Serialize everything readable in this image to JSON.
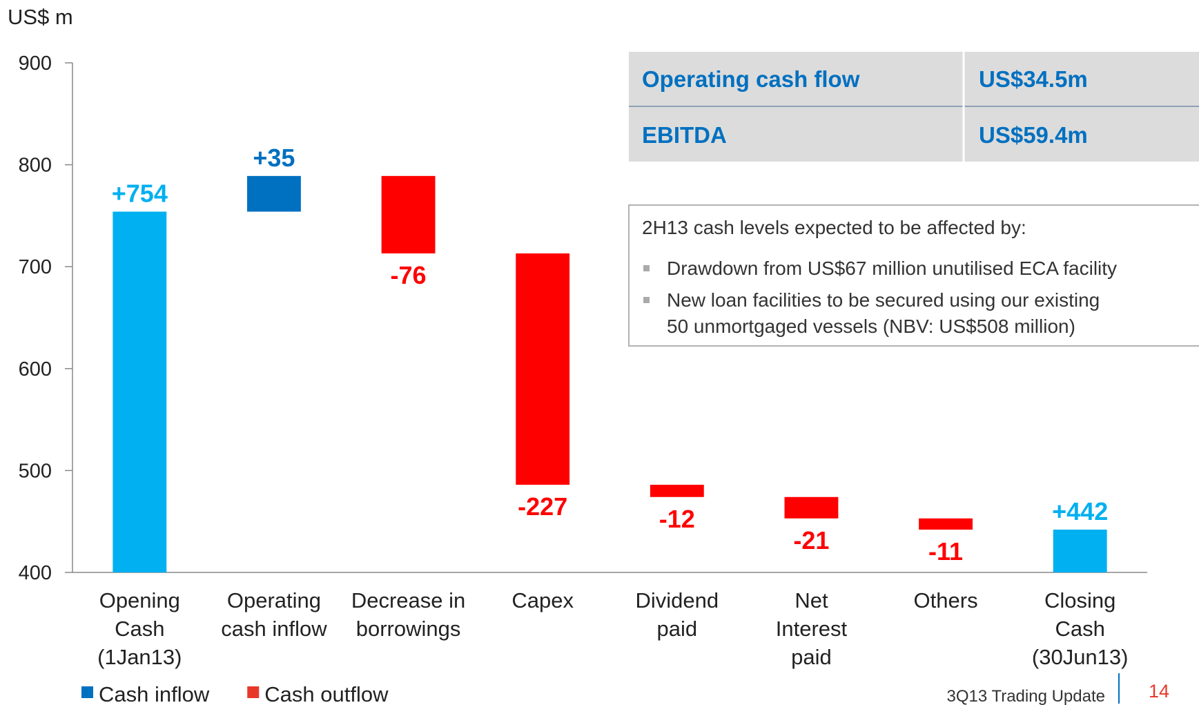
{
  "chart_data": {
    "type": "waterfall",
    "y_unit": "US$ m",
    "categories": [
      "Opening\nCash\n(1Jan13)",
      "Operating\ncash inflow",
      "Decrease in\nborrowings",
      "Capex",
      "Dividend\npaid",
      "Net\nInterest\npaid",
      "Others",
      "Closing\nCash\n(30Jun13)"
    ],
    "values": [
      754,
      35,
      -76,
      -227,
      -12,
      -21,
      -11,
      442
    ],
    "value_labels": [
      "+754",
      "+35",
      "-76",
      "-227",
      "-12",
      "-21",
      "-11",
      "+442"
    ],
    "measure": [
      "total",
      "relative",
      "relative",
      "relative",
      "relative",
      "relative",
      "relative",
      "total"
    ],
    "colors": [
      "#00b0f0",
      "#0070c0",
      "#ff0000",
      "#ff0000",
      "#ff0000",
      "#ff0000",
      "#ff0000",
      "#00b0f0"
    ],
    "ylim": [
      400,
      900
    ],
    "yticks": [
      400,
      500,
      600,
      700,
      800,
      900
    ],
    "legend": [
      {
        "name": "Cash inflow",
        "color": "#0070c0"
      },
      {
        "name": "Cash outflow",
        "color": "#e8382a"
      }
    ]
  },
  "table": {
    "rows": [
      [
        "Operating cash flow",
        "US$34.5m"
      ],
      [
        "EBITDA",
        "US$59.4m"
      ]
    ]
  },
  "note": {
    "title": "2H13 cash levels expected to be affected by:",
    "bullets": [
      "Drawdown from US$67 million unutilised ECA  facility",
      "New loan facilities to be secured using our existing\n50 unmortgaged vessels (NBV: US$508 million)"
    ]
  },
  "footer": {
    "text": "3Q13 Trading Update",
    "page": "14"
  }
}
